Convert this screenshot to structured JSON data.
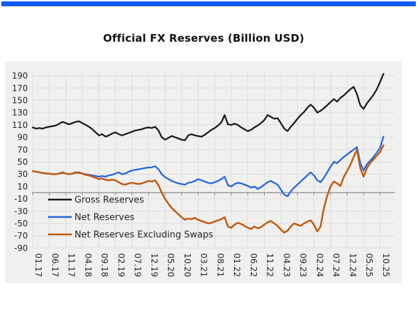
{
  "page": {
    "top_bar_color": "#0d5bf0",
    "panel_background": "#f0f0ef",
    "gridline_color": "#dedede",
    "zero_axis_color": "#8a8a8a",
    "label_color": "#262626"
  },
  "chart_data": {
    "type": "line",
    "title": "Official FX Reserves (Billion USD)",
    "xlabel": "",
    "ylabel": "",
    "x_start_month": "01.17",
    "x_end_month": "11.25",
    "x_tick_every_months": 5,
    "x_tick_labels": [
      "01.17",
      "06.17",
      "11.17",
      "04.18",
      "09.18",
      "02.19",
      "07.19",
      "12.19",
      "05.20",
      "10.20",
      "03.21",
      "08.21",
      "01.22",
      "06.22",
      "11.22",
      "04.23",
      "09.23",
      "02.24",
      "07.24",
      "12.24",
      "05.25",
      "10.25"
    ],
    "y_ticks": [
      190,
      170,
      150,
      130,
      110,
      90,
      70,
      50,
      30,
      10,
      -10,
      -30,
      -50,
      -70,
      -90
    ],
    "ylim": [
      -90,
      196
    ],
    "grid": true,
    "zero_axis_line": true,
    "legend_position": "lower-left-inside",
    "series": [
      {
        "name": "Gross Reserves",
        "color": "#1b1b1b",
        "values": [
          106,
          104,
          105,
          104,
          106,
          107,
          108,
          109,
          112,
          115,
          113,
          111,
          113,
          115,
          116,
          113,
          110,
          107,
          103,
          98,
          93,
          95,
          91,
          93,
          96,
          98,
          95,
          93,
          95,
          97,
          99,
          101,
          102,
          103,
          105,
          106,
          105,
          107,
          101,
          90,
          86,
          89,
          92,
          90,
          88,
          86,
          85,
          93,
          95,
          93,
          92,
          91,
          94,
          98,
          102,
          105,
          109,
          114,
          126,
          111,
          110,
          112,
          110,
          106,
          103,
          100,
          102,
          106,
          109,
          113,
          118,
          126,
          123,
          120,
          121,
          113,
          104,
          100,
          107,
          113,
          120,
          126,
          131,
          138,
          143,
          138,
          130,
          133,
          137,
          142,
          147,
          152,
          148,
          154,
          158,
          163,
          168,
          172,
          160,
          142,
          136,
          145,
          152,
          159,
          168,
          180,
          193
        ]
      },
      {
        "name": "Net Reserves",
        "color": "#2565dd",
        "values": [
          35,
          34,
          33,
          32,
          31,
          31,
          30,
          30,
          31,
          32,
          31,
          30,
          31,
          32,
          33,
          31,
          30,
          29,
          28,
          27,
          26,
          27,
          26,
          28,
          29,
          31,
          33,
          30,
          31,
          34,
          36,
          37,
          38,
          39,
          40,
          41,
          41,
          43,
          38,
          30,
          25,
          22,
          19,
          17,
          15,
          14,
          13,
          16,
          17,
          19,
          22,
          20,
          18,
          16,
          15,
          17,
          19,
          22,
          26,
          12,
          10,
          14,
          16,
          15,
          13,
          11,
          8,
          10,
          6,
          9,
          13,
          17,
          19,
          16,
          13,
          5,
          -3,
          -6,
          2,
          8,
          13,
          18,
          23,
          28,
          33,
          28,
          20,
          17,
          24,
          33,
          42,
          50,
          48,
          53,
          58,
          62,
          66,
          70,
          74,
          48,
          36,
          46,
          52,
          58,
          65,
          73,
          91
        ]
      },
      {
        "name": "Net Reserves Excluding Swaps",
        "color": "#c25a10",
        "values": [
          35,
          34,
          33,
          32,
          31,
          31,
          30,
          30,
          31,
          33,
          31,
          30,
          31,
          33,
          32,
          31,
          29,
          28,
          26,
          24,
          22,
          23,
          21,
          20,
          21,
          20,
          17,
          14,
          13,
          15,
          16,
          15,
          14,
          15,
          17,
          19,
          18,
          20,
          12,
          0,
          -10,
          -18,
          -25,
          -30,
          -35,
          -40,
          -44,
          -42,
          -43,
          -41,
          -44,
          -46,
          -48,
          -50,
          -49,
          -47,
          -45,
          -43,
          -40,
          -55,
          -57,
          -52,
          -49,
          -51,
          -54,
          -57,
          -59,
          -55,
          -58,
          -56,
          -52,
          -48,
          -46,
          -50,
          -54,
          -60,
          -65,
          -62,
          -55,
          -50,
          -52,
          -54,
          -50,
          -47,
          -45,
          -52,
          -63,
          -55,
          -25,
          -5,
          10,
          18,
          15,
          11,
          25,
          35,
          45,
          58,
          70,
          40,
          26,
          40,
          48,
          54,
          60,
          66,
          77
        ]
      }
    ]
  }
}
